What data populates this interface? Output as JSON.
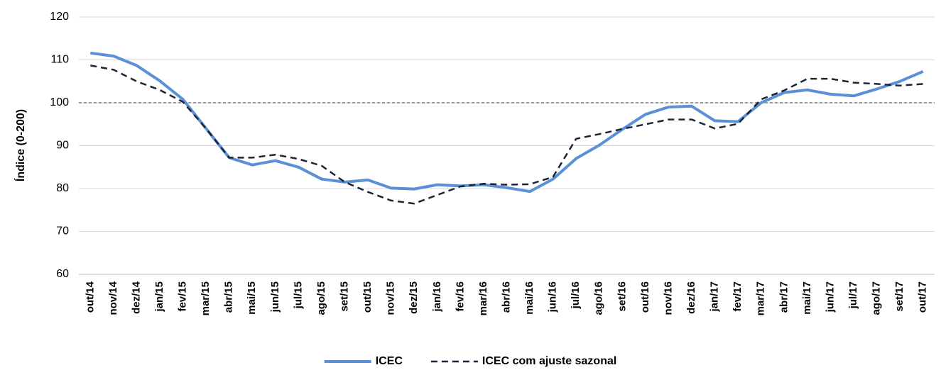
{
  "chart_data": {
    "type": "line",
    "y_label": "Índice (0-200)",
    "categories": [
      "out/14",
      "nov/14",
      "dez/14",
      "jan/15",
      "fev/15",
      "mar/15",
      "abr/15",
      "mai/15",
      "jun/15",
      "jul/15",
      "ago/15",
      "set/15",
      "out/15",
      "nov/15",
      "dez/15",
      "jan/16",
      "fev/16",
      "mar/16",
      "abr/16",
      "mai/16",
      "jun/16",
      "jul/16",
      "ago/16",
      "set/16",
      "out/16",
      "nov/16",
      "dez/16",
      "jan/17",
      "fev/17",
      "mar/17",
      "abr/17",
      "mai/17",
      "jun/17",
      "jul/17",
      "ago/17",
      "set/17",
      "out/17"
    ],
    "series": [
      {
        "name": "ICEC",
        "color": "#5b8fd6",
        "dash": false,
        "values": [
          111.6,
          110.9,
          108.7,
          105.1,
          100.8,
          94.0,
          87.2,
          85.5,
          86.5,
          85.0,
          82.2,
          81.5,
          82.0,
          80.1,
          79.9,
          80.9,
          80.6,
          80.9,
          80.2,
          79.3,
          82.2,
          87.0,
          90.1,
          93.8,
          97.3,
          99.0,
          99.2,
          95.8,
          95.6,
          100.0,
          102.4,
          103.0,
          102.0,
          101.6,
          103.2,
          105.0,
          107.3
        ]
      },
      {
        "name": "ICEC com ajuste sazonal",
        "color": "#1b2538",
        "dash": true,
        "values": [
          108.7,
          107.7,
          105.0,
          103.0,
          100.2,
          94.0,
          87.2,
          87.2,
          87.9,
          86.9,
          85.3,
          81.5,
          79.2,
          77.2,
          76.5,
          78.5,
          80.5,
          81.1,
          80.9,
          81.0,
          82.7,
          91.6,
          92.7,
          93.9,
          95.0,
          96.1,
          96.1,
          94.0,
          95.1,
          100.8,
          102.9,
          105.6,
          105.6,
          104.7,
          104.4,
          104.0,
          104.4
        ]
      }
    ],
    "reference_line": 100,
    "ylim": [
      60,
      120
    ],
    "yticks": [
      60,
      70,
      80,
      90,
      100,
      110,
      120
    ],
    "grid": true,
    "legend": "bottom"
  }
}
